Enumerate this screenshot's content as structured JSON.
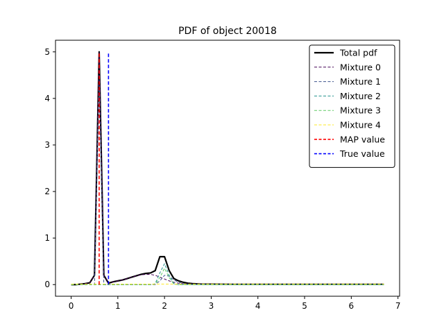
{
  "chart_data": {
    "type": "line",
    "title": "PDF of object 20018",
    "xlabel": "",
    "ylabel": "",
    "xlim": [
      -0.335,
      7.035
    ],
    "ylim": [
      -0.25,
      5.25
    ],
    "xticks": [
      0,
      1,
      2,
      3,
      4,
      5,
      6,
      7
    ],
    "yticks": [
      0,
      1,
      2,
      3,
      4,
      5
    ],
    "grid": false,
    "legend_position": "top-right",
    "x": [
      0.0,
      0.1,
      0.2,
      0.3,
      0.4,
      0.5,
      0.6,
      0.7,
      0.8,
      0.9,
      1.0,
      1.1,
      1.2,
      1.3,
      1.4,
      1.5,
      1.6,
      1.7,
      1.8,
      1.9,
      2.0,
      2.1,
      2.2,
      2.3,
      2.4,
      2.5,
      2.6,
      2.7,
      2.8,
      2.9,
      3.0,
      3.5,
      4.0,
      4.5,
      5.0,
      5.5,
      6.0,
      6.5,
      6.7
    ],
    "series": [
      {
        "name": "Total pdf",
        "color": "#000000",
        "style": "solid",
        "width": 2.2,
        "values": [
          0,
          0,
          0.01,
          0.02,
          0.04,
          0.2,
          5.0,
          0.2,
          0.03,
          0.06,
          0.08,
          0.1,
          0.13,
          0.16,
          0.19,
          0.22,
          0.24,
          0.25,
          0.3,
          0.6,
          0.6,
          0.3,
          0.13,
          0.08,
          0.05,
          0.03,
          0.02,
          0.015,
          0.01,
          0.01,
          0.01,
          0.005,
          0.005,
          0.005,
          0.005,
          0.005,
          0.005,
          0.005,
          0.005
        ]
      },
      {
        "name": "Mixture 0",
        "color": "#440154",
        "style": "dashed",
        "width": 1.0,
        "values": [
          0,
          0,
          0.01,
          0.02,
          0.04,
          0.2,
          5.0,
          0.2,
          0.03,
          0.06,
          0.08,
          0.1,
          0.13,
          0.16,
          0.19,
          0.21,
          0.22,
          0.22,
          0.2,
          0.16,
          0.12,
          0.08,
          0.05,
          0.03,
          0.02,
          0.015,
          0.01,
          0.01,
          0.005,
          0.005,
          0.005,
          0,
          0,
          0,
          0,
          0,
          0,
          0,
          0
        ]
      },
      {
        "name": "Mixture 1",
        "color": "#3b528b",
        "style": "dashed",
        "width": 1.0,
        "values": [
          0,
          0,
          0,
          0,
          0,
          0,
          4.5,
          0,
          0,
          0,
          0,
          0,
          0,
          0,
          0,
          0,
          0,
          0,
          0,
          0.08,
          0.2,
          0.18,
          0.1,
          0.05,
          0.02,
          0.01,
          0,
          0,
          0,
          0,
          0,
          0,
          0,
          0,
          0,
          0,
          0,
          0,
          0
        ]
      },
      {
        "name": "Mixture 2",
        "color": "#21918c",
        "style": "dashed",
        "width": 1.0,
        "values": [
          0,
          0,
          0,
          0,
          0,
          0,
          0,
          0,
          0,
          0,
          0,
          0,
          0,
          0,
          0,
          0,
          0,
          0,
          0.02,
          0.25,
          0.45,
          0.2,
          0.02,
          0,
          0,
          0,
          0,
          0,
          0,
          0,
          0,
          0,
          0,
          0,
          0,
          0,
          0,
          0,
          0
        ]
      },
      {
        "name": "Mixture 3",
        "color": "#5ec962",
        "style": "dashed",
        "width": 1.0,
        "values": [
          0,
          0,
          0,
          0,
          0,
          0,
          0,
          0,
          0,
          0,
          0,
          0,
          0,
          0,
          0,
          0,
          0,
          0,
          0.01,
          0.15,
          0.35,
          0.15,
          0.01,
          0,
          0,
          0,
          0,
          0,
          0,
          0,
          0,
          0,
          0,
          0,
          0,
          0,
          0,
          0,
          0
        ]
      },
      {
        "name": "Mixture 4",
        "color": "#fde725",
        "style": "dashed",
        "width": 1.0,
        "values": [
          0.01,
          0.01,
          0.01,
          0.01,
          0.01,
          0.01,
          0.01,
          0.01,
          0.01,
          0.01,
          0.01,
          0.01,
          0.01,
          0.01,
          0.01,
          0.01,
          0.01,
          0.01,
          0.01,
          0.01,
          0.01,
          0.01,
          0.01,
          0.01,
          0.01,
          0.01,
          0.01,
          0.01,
          0.01,
          0.01,
          0.01,
          0.01,
          0.01,
          0.01,
          0.01,
          0.01,
          0.01,
          0.01,
          0.01
        ]
      }
    ],
    "vlines": [
      {
        "name": "MAP value",
        "x": 0.6,
        "y0": 0,
        "y1": 5.0,
        "color": "#ff0000",
        "style": "dashed",
        "width": 1.6
      },
      {
        "name": "True value",
        "x": 0.8,
        "y0": 0,
        "y1": 5.0,
        "color": "#0000ff",
        "style": "dashed",
        "width": 1.6
      }
    ],
    "legend": [
      {
        "label": "Total pdf",
        "color": "#000000",
        "style": "solid",
        "width": 2.2
      },
      {
        "label": "Mixture 0",
        "color": "#440154",
        "style": "dashed",
        "width": 1.0
      },
      {
        "label": "Mixture 1",
        "color": "#3b528b",
        "style": "dashed",
        "width": 1.0
      },
      {
        "label": "Mixture 2",
        "color": "#21918c",
        "style": "dashed",
        "width": 1.0
      },
      {
        "label": "Mixture 3",
        "color": "#5ec962",
        "style": "dashed",
        "width": 1.0
      },
      {
        "label": "Mixture 4",
        "color": "#fde725",
        "style": "dashed",
        "width": 1.0
      },
      {
        "label": "MAP value",
        "color": "#ff0000",
        "style": "dashed",
        "width": 1.6
      },
      {
        "label": "True value",
        "color": "#0000ff",
        "style": "dashed",
        "width": 1.6
      }
    ]
  }
}
